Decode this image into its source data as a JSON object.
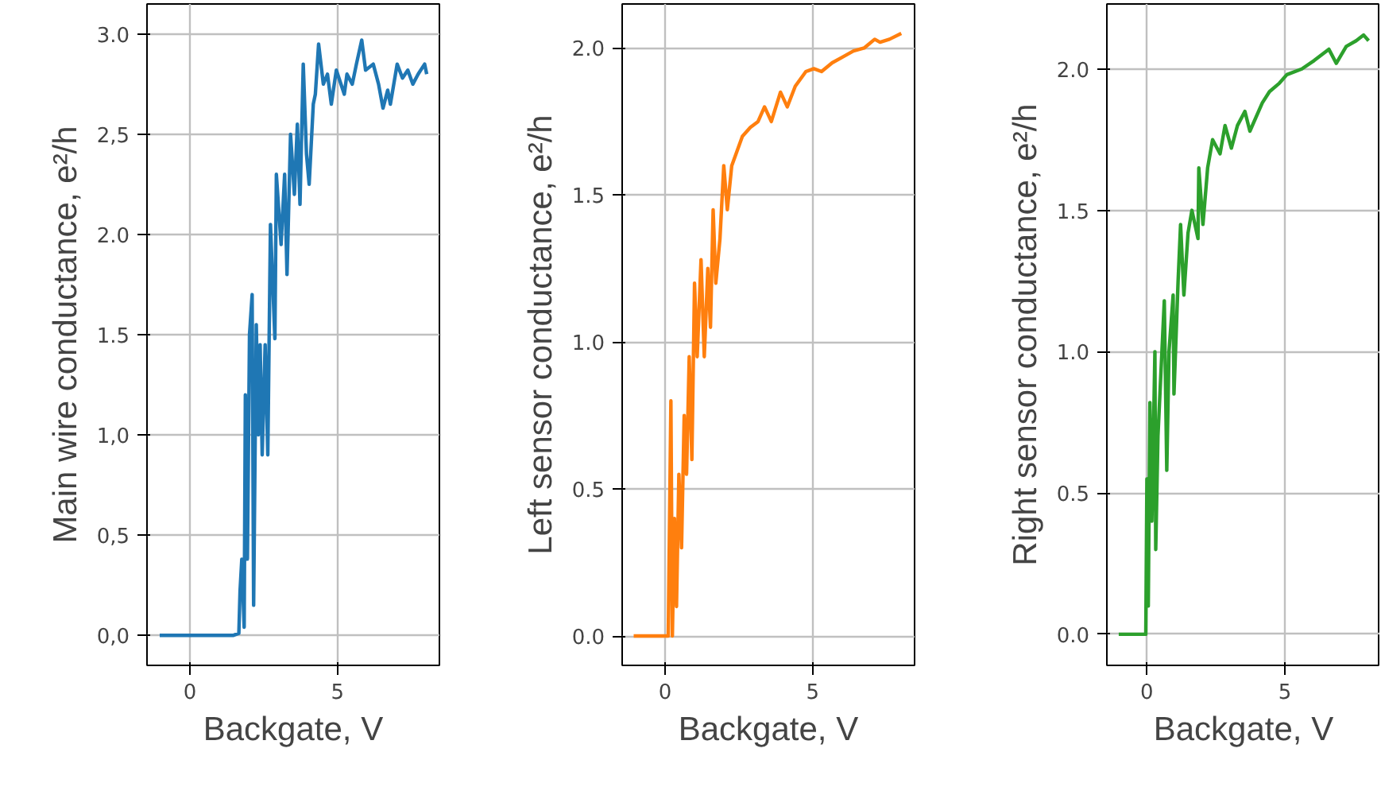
{
  "chart_data": [
    {
      "type": "line",
      "xlabel": "Backgate, V",
      "ylabel": "Main wire conductance, e²/h",
      "xlim": [
        -1.45,
        8.45
      ],
      "ylim": [
        -0.15,
        3.15
      ],
      "xticks": [
        0,
        5
      ],
      "yticks": [
        {
          "value": 0,
          "label": "0,0"
        },
        {
          "value": 0.5,
          "label": "0,5"
        },
        {
          "value": 1,
          "label": "1,0"
        },
        {
          "value": 1.5,
          "label": "1.5"
        },
        {
          "value": 2,
          "label": "2.0"
        },
        {
          "value": 2.5,
          "label": "2,5"
        },
        {
          "value": 3,
          "label": "3.0"
        }
      ],
      "grid": true,
      "x": [
        -1.02,
        1.48,
        1.66,
        1.7,
        1.76,
        1.84,
        1.88,
        1.95,
        2.02,
        2.11,
        2.16,
        2.25,
        2.32,
        2.38,
        2.45,
        2.55,
        2.64,
        2.73,
        2.88,
        2.93,
        3.09,
        3.21,
        3.29,
        3.41,
        3.54,
        3.64,
        3.73,
        3.84,
        3.95,
        4.04,
        4.18,
        4.25,
        4.36,
        4.52,
        4.66,
        4.79,
        4.96,
        5.23,
        5.32,
        5.5,
        5.64,
        5.82,
        5.95,
        6.21,
        6.39,
        6.54,
        6.7,
        6.79,
        7.02,
        7.2,
        7.38,
        7.55,
        7.73,
        7.95,
        8.02
      ],
      "series": [
        {
          "color": "#1f77b4",
          "values": [
            0,
            0,
            0.01,
            0.22,
            0.38,
            0.04,
            1.2,
            0.38,
            1.5,
            1.7,
            0.15,
            1.55,
            1.0,
            1.45,
            0.9,
            1.45,
            0.9,
            2.05,
            1.48,
            2.3,
            1.95,
            2.3,
            1.8,
            2.5,
            2.2,
            2.55,
            2.15,
            2.85,
            2.4,
            2.25,
            2.65,
            2.7,
            2.95,
            2.75,
            2.8,
            2.65,
            2.82,
            2.7,
            2.8,
            2.75,
            2.85,
            2.97,
            2.82,
            2.85,
            2.75,
            2.63,
            2.72,
            2.65,
            2.85,
            2.78,
            2.82,
            2.75,
            2.8,
            2.85,
            2.8
          ]
        }
      ]
    },
    {
      "type": "line",
      "xlabel": "Backgate, V",
      "ylabel": "Left sensor conductance, e²/h",
      "xlim": [
        -1.45,
        8.45
      ],
      "ylim": [
        -0.1,
        2.15
      ],
      "xticks": [
        0,
        5
      ],
      "yticks": [
        {
          "value": 0,
          "label": "0.0"
        },
        {
          "value": 0.5,
          "label": "0.5"
        },
        {
          "value": 1,
          "label": "1.0"
        },
        {
          "value": 1.5,
          "label": "1.5"
        },
        {
          "value": 2,
          "label": "2.0"
        }
      ],
      "grid": true,
      "x": [
        -1.06,
        0.11,
        0.2,
        0.25,
        0.32,
        0.39,
        0.47,
        0.56,
        0.65,
        0.73,
        0.82,
        0.91,
        1.0,
        1.09,
        1.22,
        1.33,
        1.45,
        1.54,
        1.63,
        1.72,
        1.86,
        1.99,
        2.11,
        2.26,
        2.44,
        2.62,
        2.89,
        3.15,
        3.37,
        3.6,
        3.91,
        4.14,
        4.41,
        4.77,
        5.04,
        5.3,
        5.66,
        6.02,
        6.38,
        6.74,
        7.1,
        7.28,
        7.6,
        8.0
      ],
      "series": [
        {
          "color": "#ff7f0e",
          "values": [
            0,
            0,
            0.8,
            0.0,
            0.4,
            0.1,
            0.55,
            0.3,
            0.75,
            0.55,
            0.95,
            0.6,
            1.2,
            0.95,
            1.28,
            0.95,
            1.25,
            1.05,
            1.45,
            1.2,
            1.35,
            1.6,
            1.45,
            1.6,
            1.65,
            1.7,
            1.73,
            1.75,
            1.8,
            1.75,
            1.85,
            1.8,
            1.87,
            1.92,
            1.93,
            1.92,
            1.95,
            1.97,
            1.99,
            2.0,
            2.03,
            2.02,
            2.03,
            2.05
          ]
        }
      ]
    },
    {
      "type": "line",
      "xlabel": "Backgate, V",
      "ylabel": "Right sensor conductance, e²/h",
      "xlim": [
        -1.45,
        8.45
      ],
      "ylim": [
        -0.11,
        2.23
      ],
      "xticks": [
        0,
        5
      ],
      "yticks": [
        {
          "value": 0,
          "label": "0.0"
        },
        {
          "value": 0.5,
          "label": "0.5"
        },
        {
          "value": 1,
          "label": "1.0"
        },
        {
          "value": 1.5,
          "label": "1.5"
        },
        {
          "value": 2,
          "label": "2.0"
        }
      ],
      "grid": true,
      "x": [
        -1.02,
        -0.04,
        0.0,
        0.05,
        0.11,
        0.18,
        0.29,
        0.32,
        0.4,
        0.63,
        0.72,
        0.8,
        0.95,
        0.98,
        1.13,
        1.22,
        1.34,
        1.49,
        1.63,
        1.85,
        1.88,
        2.03,
        2.2,
        2.38,
        2.65,
        2.83,
        3.06,
        3.28,
        3.55,
        3.73,
        4.18,
        4.44,
        4.8,
        5.07,
        5.61,
        6.06,
        6.59,
        6.86,
        7.22,
        7.58,
        7.85,
        8.03
      ],
      "series": [
        {
          "color": "#2ca02c",
          "values": [
            0,
            0,
            0.55,
            0.1,
            0.82,
            0.4,
            1.0,
            0.3,
            0.7,
            1.18,
            0.58,
            1.0,
            1.2,
            0.85,
            1.25,
            1.45,
            1.2,
            1.42,
            1.5,
            1.4,
            1.65,
            1.45,
            1.65,
            1.75,
            1.7,
            1.8,
            1.72,
            1.8,
            1.85,
            1.78,
            1.88,
            1.92,
            1.95,
            1.98,
            2.0,
            2.03,
            2.07,
            2.02,
            2.08,
            2.1,
            2.12,
            2.1
          ]
        }
      ]
    }
  ]
}
